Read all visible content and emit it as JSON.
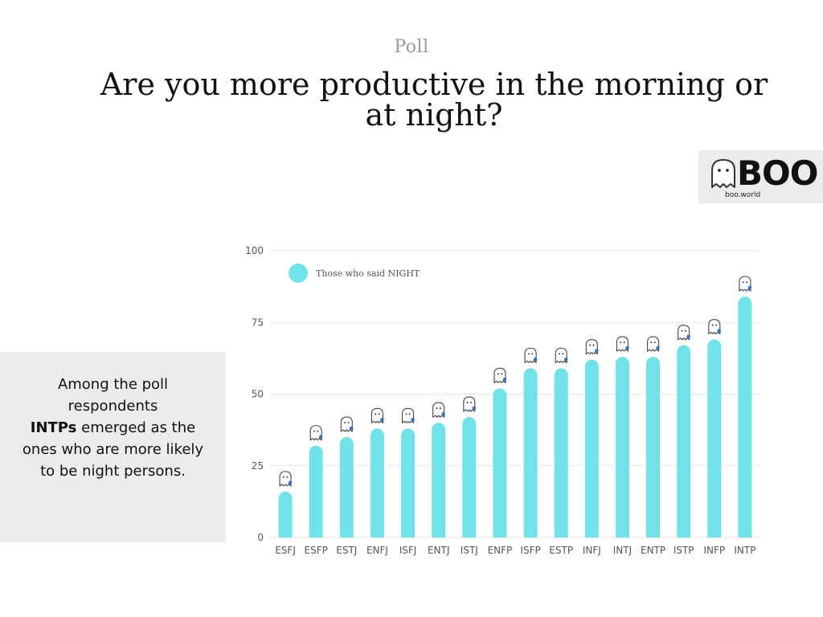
{
  "header": {
    "kicker": "Poll",
    "title": "Are you more productive in the morning or at night?"
  },
  "logo": {
    "wordmark": "BOO",
    "site": "boo.world",
    "icon": "ghost-icon"
  },
  "note": {
    "line1": "Among the poll respondents",
    "highlight": "INTPs",
    "line2": "emerged as the ones who are more likely to be night persons."
  },
  "colors": {
    "bar": "#6fe3e8",
    "grid": "#e6e6e6",
    "text": "#555555",
    "ghost_outline": "#444444",
    "accessory": "#2f6fd0"
  },
  "chart_data": {
    "type": "bar",
    "categories": [
      "ESFJ",
      "ESFP",
      "ESTJ",
      "ENFJ",
      "ISFJ",
      "ENTJ",
      "ISTJ",
      "ENFP",
      "ISFP",
      "ESTP",
      "INFJ",
      "INTJ",
      "ENTP",
      "ISTP",
      "INFP",
      "INTP"
    ],
    "series": [
      {
        "name": "Those who said NIGHT",
        "values": [
          16,
          32,
          35,
          38,
          38,
          40,
          42,
          52,
          59,
          59,
          62,
          63,
          63,
          67,
          69,
          84
        ]
      }
    ],
    "ylim": [
      0,
      100
    ],
    "yticks": [
      0,
      25,
      50,
      75,
      100
    ],
    "grid": true,
    "legend": "top-left",
    "markers": "ghost-icon above each bar"
  }
}
